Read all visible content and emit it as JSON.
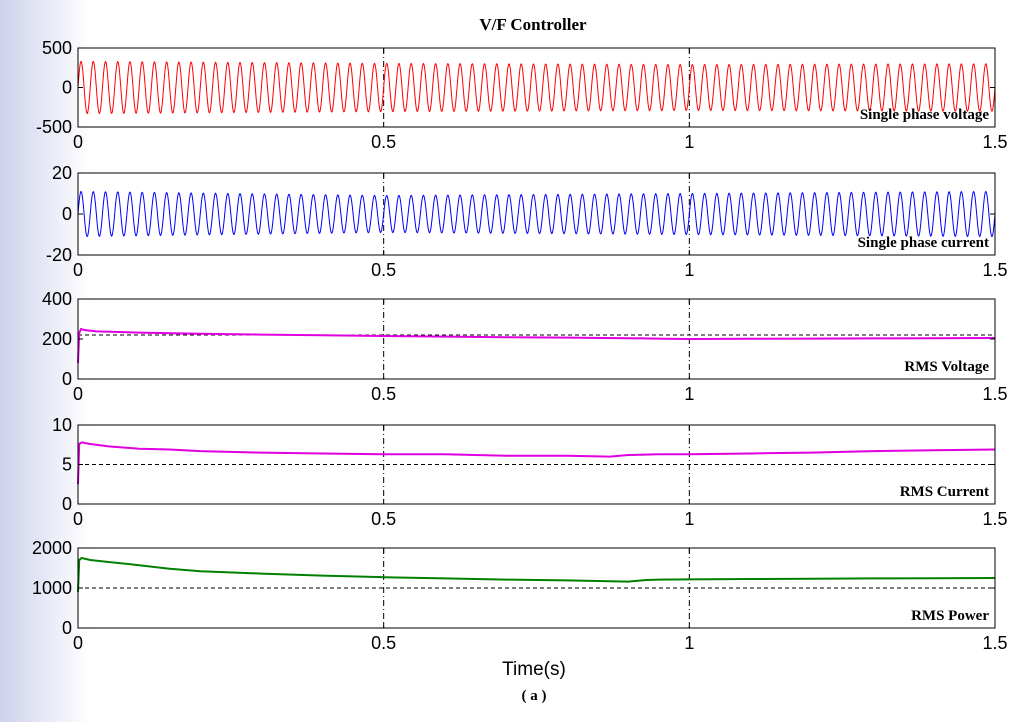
{
  "figure": {
    "title": "V/F Controller",
    "xlabel": "Time(s)",
    "caption": "( a )"
  },
  "chart_data": [
    {
      "type": "line",
      "x_range": [
        0,
        1.5
      ],
      "xticks": [
        "0",
        "0.5",
        "1",
        "1.5"
      ],
      "ylim": [
        -500,
        500
      ],
      "yticks": [
        "-500",
        "0",
        "500"
      ],
      "annotation": "Single phase voltage",
      "series": [
        {
          "kind": "sinusoid",
          "color": "#ff0000",
          "frequency_hz": 50,
          "amplitude_envelope": [
            [
              0,
              330
            ],
            [
              0.5,
              305
            ],
            [
              1.0,
              290
            ],
            [
              1.5,
              300
            ]
          ]
        }
      ],
      "reference_line": null
    },
    {
      "type": "line",
      "x_range": [
        0,
        1.5
      ],
      "xticks": [
        "0",
        "0.5",
        "1",
        "1.5"
      ],
      "ylim": [
        -20,
        20
      ],
      "yticks": [
        "-20",
        "0",
        "20"
      ],
      "annotation": "Single phase current",
      "series": [
        {
          "kind": "sinusoid",
          "color": "#0000ff",
          "frequency_hz": 50,
          "amplitude_envelope": [
            [
              0,
              11
            ],
            [
              0.5,
              9
            ],
            [
              1.0,
              10
            ],
            [
              1.5,
              11
            ]
          ]
        }
      ],
      "reference_line": null
    },
    {
      "type": "line",
      "x_range": [
        0,
        1.5
      ],
      "xticks": [
        "0",
        "0.5",
        "1",
        "1.5"
      ],
      "ylim": [
        0,
        400
      ],
      "yticks": [
        "0",
        "200",
        "400"
      ],
      "annotation": "RMS Voltage",
      "series": [
        {
          "kind": "trace",
          "color": "#e000e0",
          "x": [
            0,
            0.002,
            0.005,
            0.01,
            0.03,
            0.1,
            0.2,
            0.3,
            0.4,
            0.5,
            0.6,
            0.7,
            0.8,
            0.9,
            0.96,
            1.0,
            1.1,
            1.2,
            1.3,
            1.4,
            1.5
          ],
          "y": [
            80,
            230,
            250,
            245,
            238,
            232,
            226,
            222,
            219,
            215,
            212,
            209,
            207,
            204,
            201,
            200,
            201,
            202,
            203,
            204,
            205
          ]
        }
      ],
      "reference_line": {
        "y": 220,
        "color": "#000000",
        "dash": true
      }
    },
    {
      "type": "line",
      "x_range": [
        0,
        1.5
      ],
      "xticks": [
        "0",
        "0.5",
        "1",
        "1.5"
      ],
      "ylim": [
        0,
        10
      ],
      "yticks": [
        "0",
        "5",
        "10"
      ],
      "annotation": "RMS Current",
      "series": [
        {
          "kind": "trace",
          "color": "#e000e0",
          "x": [
            0,
            0.002,
            0.006,
            0.02,
            0.05,
            0.1,
            0.15,
            0.2,
            0.3,
            0.4,
            0.5,
            0.6,
            0.65,
            0.7,
            0.8,
            0.87,
            0.9,
            0.95,
            1.0,
            1.1,
            1.2,
            1.3,
            1.4,
            1.5
          ],
          "y": [
            2.5,
            7.6,
            7.8,
            7.6,
            7.3,
            7.0,
            6.9,
            6.7,
            6.5,
            6.4,
            6.3,
            6.3,
            6.2,
            6.1,
            6.1,
            6.0,
            6.2,
            6.3,
            6.3,
            6.4,
            6.5,
            6.7,
            6.8,
            6.9
          ]
        }
      ],
      "reference_line": {
        "y": 5,
        "color": "#000000",
        "dash": true
      }
    },
    {
      "type": "line",
      "x_range": [
        0,
        1.5
      ],
      "xticks": [
        "0",
        "0.5",
        "1",
        "1.5"
      ],
      "ylim": [
        0,
        2000
      ],
      "yticks": [
        "0",
        "1000",
        "2000"
      ],
      "annotation": "RMS Power",
      "series": [
        {
          "kind": "trace",
          "color": "#008000",
          "x": [
            0,
            0.002,
            0.006,
            0.02,
            0.05,
            0.1,
            0.15,
            0.2,
            0.3,
            0.4,
            0.5,
            0.6,
            0.7,
            0.8,
            0.9,
            0.93,
            0.95,
            1.0,
            1.1,
            1.2,
            1.3,
            1.4,
            1.5
          ],
          "y": [
            900,
            1700,
            1750,
            1700,
            1650,
            1570,
            1480,
            1420,
            1360,
            1310,
            1270,
            1240,
            1210,
            1190,
            1160,
            1200,
            1210,
            1215,
            1225,
            1230,
            1240,
            1245,
            1250
          ]
        }
      ],
      "reference_line": {
        "y": 1000,
        "color": "#000000",
        "dash": true
      }
    }
  ]
}
